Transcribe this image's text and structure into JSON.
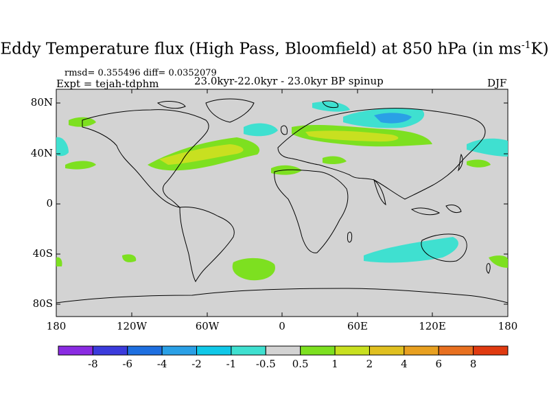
{
  "map": {
    "title_main": "Eddy Temperature flux (High Pass, Bloomfield) at 850 hPa (in ms",
    "title_sup": "-1",
    "title_end": "K)",
    "stats": "rmsd= 0.355496 diff= 0.0352079",
    "experiment": "Expt = tejah-tdphm",
    "period": "23.0kyr-22.0kyr - 23.0kyr BP spinup",
    "season": "DJF",
    "lat_labels": [
      "80N",
      "40N",
      "0",
      "40S",
      "80S"
    ],
    "lon_labels": [
      "180",
      "120W",
      "60W",
      "0",
      "60E",
      "120E",
      "180"
    ],
    "background_color": "#d3d3d3"
  },
  "colorbar": {
    "labels": [
      "-8",
      "-6",
      "-4",
      "-2",
      "-1",
      "-0.5",
      "0.5",
      "1",
      "2",
      "4",
      "6",
      "8"
    ],
    "colors": [
      "#8a2be2",
      "#3b3bdc",
      "#1e6fe0",
      "#2aa0e6",
      "#10c8e8",
      "#3fe0d0",
      "#d3d3d3",
      "#7de020",
      "#c8e020",
      "#e0c020",
      "#e8a020",
      "#e87020",
      "#e03a10"
    ]
  }
}
